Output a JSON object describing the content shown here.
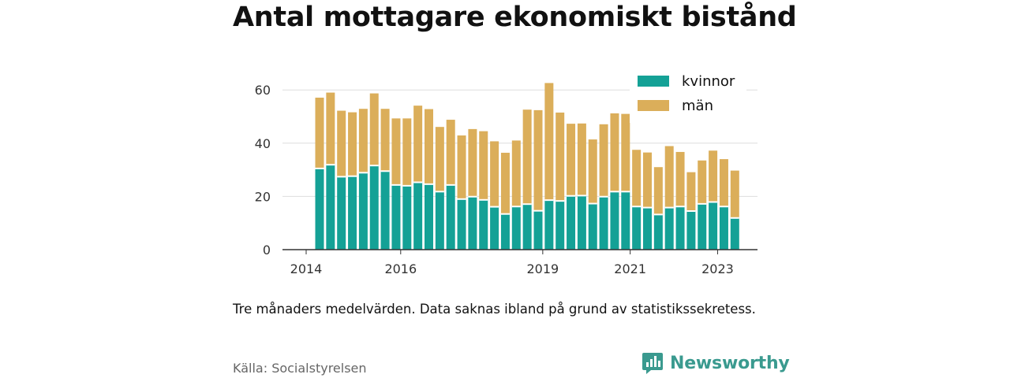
{
  "title": "Antal mottagare ekonomiskt bistånd",
  "note": "Tre månaders medelvärden. Data saknas ibland på grund av statistikssekretess.",
  "source": "Källa: Socialstyrelsen",
  "brand": {
    "name": "Newsworthy",
    "icon": "newsworthy-logo-icon",
    "color": "#3a9a8f"
  },
  "colors": {
    "kvinnor": "#14a196",
    "man": "#dbae5a"
  },
  "chart_data": {
    "type": "bar",
    "stacked": true,
    "ylim": [
      0,
      70
    ],
    "yticks": [
      0,
      20,
      40,
      60
    ],
    "xticks": [
      {
        "index": 0,
        "label": "2014"
      },
      {
        "index": 8,
        "label": "2016"
      },
      {
        "index": 21,
        "label": "2019"
      },
      {
        "index": 29,
        "label": "2021"
      },
      {
        "index": 37,
        "label": "2023"
      }
    ],
    "grid": true,
    "legend": "top-right",
    "series": [
      {
        "name": "kvinnor",
        "values": [
          30.5,
          31.9,
          27.4,
          27.6,
          28.9,
          31.6,
          29.5,
          24.3,
          24.0,
          25.3,
          24.6,
          21.8,
          24.3,
          19.0,
          19.9,
          18.7,
          16.1,
          13.4,
          16.2,
          17.1,
          14.6,
          18.6,
          18.3,
          20.2,
          20.3,
          17.3,
          19.9,
          21.8,
          21.8,
          16.2,
          15.8,
          13.2,
          15.8,
          16.2,
          14.5,
          17.2,
          17.9,
          16.2,
          11.9
        ]
      },
      {
        "name": "män",
        "values": [
          26.6,
          27.1,
          24.8,
          24.0,
          24.0,
          27.1,
          23.4,
          25.0,
          25.3,
          28.8,
          28.2,
          24.3,
          24.5,
          23.9,
          25.4,
          25.8,
          24.6,
          23.0,
          24.8,
          35.5,
          37.8,
          44.0,
          33.2,
          27.1,
          27.1,
          24.1,
          27.2,
          29.4,
          29.2,
          21.3,
          20.7,
          17.8,
          23.1,
          20.5,
          14.6,
          16.3,
          19.3,
          17.8,
          17.8
        ]
      }
    ]
  }
}
